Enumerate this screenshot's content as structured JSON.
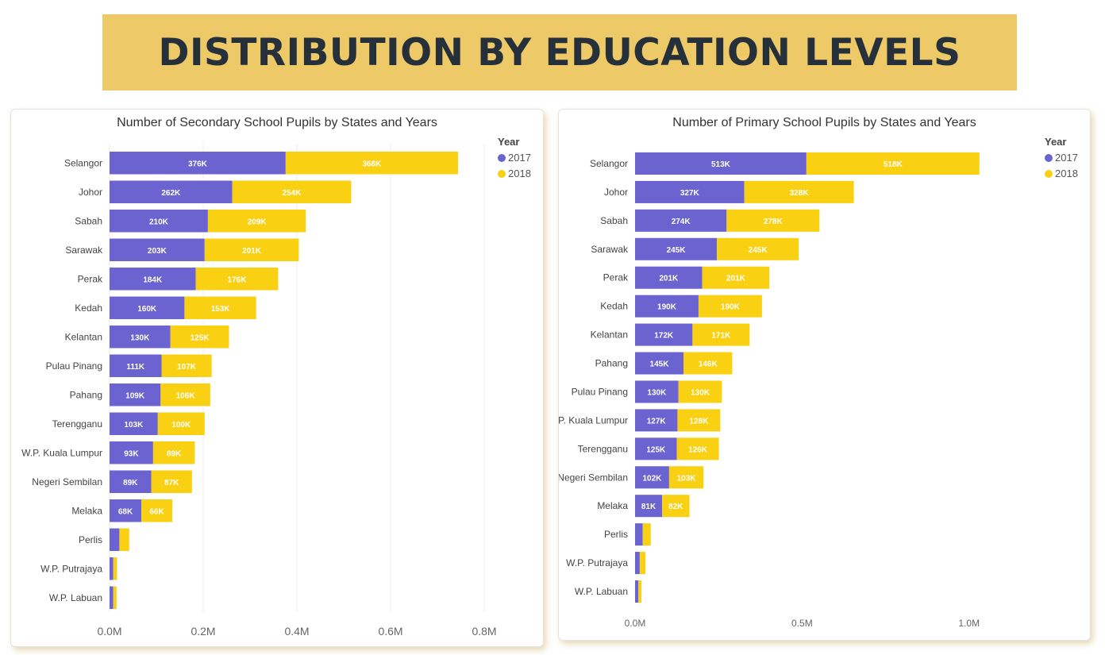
{
  "page": {
    "title": "DISTRIBUTION BY EDUCATION LEVELS"
  },
  "legend": {
    "title": "Year",
    "items": [
      "2017",
      "2018"
    ]
  },
  "colors": {
    "2017": "#6b63d0",
    "2018": "#f9d012",
    "banner": "#edc968"
  },
  "chart_data": [
    {
      "type": "bar",
      "orientation": "horizontal",
      "stacked": true,
      "title": "Number of Secondary School Pupils by States and Years",
      "categories": [
        "Selangor",
        "Johor",
        "Sabah",
        "Sarawak",
        "Perak",
        "Kedah",
        "Kelantan",
        "Pulau Pinang",
        "Pahang",
        "Terengganu",
        "W.P. Kuala Lumpur",
        "Negeri Sembilan",
        "Melaka",
        "Perlis",
        "W.P. Putrajaya",
        "W.P. Labuan"
      ],
      "series": [
        {
          "name": "2017",
          "values": [
            376000,
            262000,
            210000,
            203000,
            184000,
            160000,
            130000,
            111000,
            109000,
            103000,
            93000,
            89000,
            68000,
            21000,
            8000,
            8000
          ],
          "labels": [
            "376K",
            "262K",
            "210K",
            "203K",
            "184K",
            "160K",
            "130K",
            "111K",
            "109K",
            "103K",
            "93K",
            "89K",
            "68K",
            "",
            "",
            ""
          ]
        },
        {
          "name": "2018",
          "values": [
            368000,
            254000,
            209000,
            201000,
            176000,
            153000,
            125000,
            107000,
            106000,
            100000,
            89000,
            87000,
            66000,
            21000,
            8000,
            7000
          ],
          "labels": [
            "368K",
            "254K",
            "209K",
            "201K",
            "176K",
            "153K",
            "125K",
            "107K",
            "106K",
            "100K",
            "89K",
            "87K",
            "66K",
            "",
            "",
            ""
          ]
        }
      ],
      "xlim": [
        0,
        800000
      ],
      "xticks": [
        "0.0M",
        "0.2M",
        "0.4M",
        "0.6M",
        "0.8M"
      ],
      "grid": true,
      "legend_position": "top-right"
    },
    {
      "type": "bar",
      "orientation": "horizontal",
      "stacked": true,
      "title": "Number of Primary School Pupils by States and Years",
      "categories": [
        "Selangor",
        "Johor",
        "Sabah",
        "Sarawak",
        "Perak",
        "Kedah",
        "Kelantan",
        "Pahang",
        "Pulau Pinang",
        "W.P. Kuala Lumpur",
        "Terengganu",
        "Negeri Sembilan",
        "Melaka",
        "Perlis",
        "W.P. Putrajaya",
        "W.P. Labuan"
      ],
      "series": [
        {
          "name": "2017",
          "values": [
            513000,
            327000,
            274000,
            245000,
            201000,
            190000,
            172000,
            145000,
            130000,
            127000,
            125000,
            102000,
            81000,
            23000,
            14000,
            10000
          ],
          "labels": [
            "513K",
            "327K",
            "274K",
            "245K",
            "201K",
            "190K",
            "172K",
            "145K",
            "130K",
            "127K",
            "125K",
            "102K",
            "81K",
            "",
            "",
            ""
          ]
        },
        {
          "name": "2018",
          "values": [
            518000,
            328000,
            278000,
            245000,
            201000,
            190000,
            171000,
            146000,
            130000,
            128000,
            126000,
            103000,
            82000,
            24000,
            17000,
            9000
          ],
          "labels": [
            "518K",
            "328K",
            "278K",
            "245K",
            "201K",
            "190K",
            "171K",
            "146K",
            "130K",
            "128K",
            "126K",
            "103K",
            "82K",
            "",
            "",
            ""
          ]
        }
      ],
      "xlim": [
        0,
        1350000
      ],
      "xticks": [
        "0.0M",
        "0.5M",
        "1.0M"
      ],
      "xtick_values": [
        0,
        500000,
        1000000
      ],
      "grid": false,
      "legend_position": "top-right"
    }
  ]
}
